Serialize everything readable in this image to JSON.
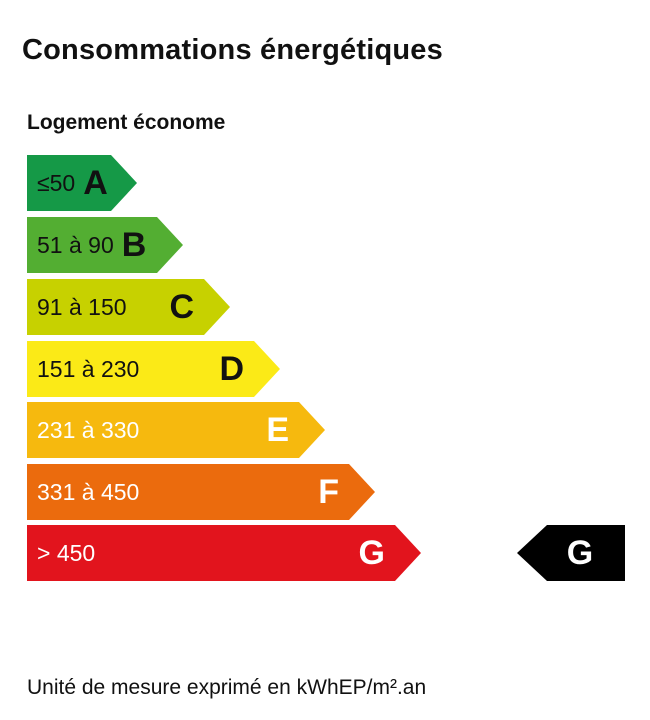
{
  "title": "Consommations énergétiques",
  "subtitle": "Logement économe",
  "classes": [
    {
      "range": "≤50",
      "letter": "A",
      "color": "#159947"
    },
    {
      "range": "51 à 90",
      "letter": "B",
      "color": "#53ae32"
    },
    {
      "range": "91 à 150",
      "letter": "C",
      "color": "#c7d100"
    },
    {
      "range": "151 à 230",
      "letter": "D",
      "color": "#fbea17"
    },
    {
      "range": "231 à 330",
      "letter": "E",
      "color": "#f6b90e"
    },
    {
      "range": "331 à 450",
      "letter": "F",
      "color": "#eb6b0d"
    },
    {
      "range": "> 450",
      "letter": "G",
      "color": "#e2141d"
    }
  ],
  "current_class": {
    "letter": "G",
    "color": "#000000"
  },
  "footer": "Unité de mesure exprimé en kWhEP/m².an"
}
